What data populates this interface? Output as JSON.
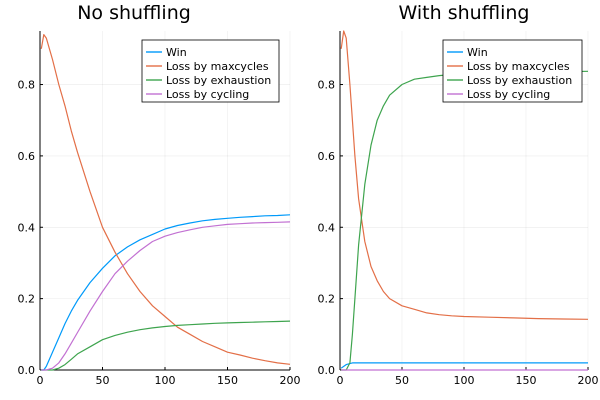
{
  "chart_data": [
    {
      "type": "line",
      "title": "No shuffling",
      "xlabel": "",
      "ylabel": "",
      "xlim": [
        0,
        200
      ],
      "ylim": [
        0,
        0.95
      ],
      "xticks": [
        0,
        50,
        100,
        150,
        200
      ],
      "yticks": [
        0.0,
        0.2,
        0.4,
        0.6,
        0.8
      ],
      "xtick_labels": [
        "0",
        "50",
        "100",
        "150",
        "200"
      ],
      "ytick_labels": [
        "0.0",
        "0.2",
        "0.4",
        "0.6",
        "0.8"
      ],
      "grid": true,
      "legend_position": "top-right",
      "x": [
        1,
        3,
        5,
        10,
        15,
        20,
        25,
        30,
        40,
        50,
        60,
        70,
        80,
        90,
        100,
        110,
        120,
        130,
        140,
        150,
        160,
        170,
        180,
        190,
        200
      ],
      "series": [
        {
          "name": "Win",
          "color": "#009AFA",
          "values": [
            0.0,
            0.0,
            0.01,
            0.05,
            0.09,
            0.13,
            0.165,
            0.195,
            0.245,
            0.285,
            0.32,
            0.345,
            0.365,
            0.38,
            0.395,
            0.405,
            0.412,
            0.418,
            0.422,
            0.425,
            0.428,
            0.43,
            0.432,
            0.433,
            0.435
          ]
        },
        {
          "name": "Loss by maxcycles",
          "color": "#E36F47",
          "values": [
            0.9,
            0.94,
            0.93,
            0.87,
            0.8,
            0.74,
            0.67,
            0.61,
            0.5,
            0.4,
            0.33,
            0.27,
            0.22,
            0.18,
            0.15,
            0.12,
            0.1,
            0.08,
            0.065,
            0.05,
            0.042,
            0.033,
            0.026,
            0.02,
            0.016
          ]
        },
        {
          "name": "Loss by exhaustion",
          "color": "#3EA44E",
          "values": [
            0.0,
            0.0,
            0.0,
            0.0,
            0.005,
            0.015,
            0.03,
            0.045,
            0.065,
            0.085,
            0.097,
            0.106,
            0.113,
            0.118,
            0.122,
            0.125,
            0.127,
            0.129,
            0.131,
            0.132,
            0.133,
            0.134,
            0.135,
            0.136,
            0.137
          ]
        },
        {
          "name": "Loss by cycling",
          "color": "#C271D2",
          "values": [
            0.0,
            0.0,
            0.0,
            0.005,
            0.02,
            0.045,
            0.075,
            0.105,
            0.165,
            0.22,
            0.27,
            0.305,
            0.335,
            0.36,
            0.375,
            0.385,
            0.393,
            0.4,
            0.404,
            0.408,
            0.41,
            0.412,
            0.413,
            0.414,
            0.415
          ]
        }
      ]
    },
    {
      "type": "line",
      "title": "With shuffling",
      "xlabel": "",
      "ylabel": "",
      "xlim": [
        0,
        200
      ],
      "ylim": [
        0,
        0.95
      ],
      "xticks": [
        0,
        50,
        100,
        150,
        200
      ],
      "yticks": [
        0.0,
        0.2,
        0.4,
        0.6,
        0.8
      ],
      "xtick_labels": [
        "0",
        "50",
        "100",
        "150",
        "200"
      ],
      "ytick_labels": [
        "0.0",
        "0.2",
        "0.4",
        "0.6",
        "0.8"
      ],
      "grid": true,
      "legend_position": "top-right",
      "x": [
        1,
        3,
        5,
        8,
        10,
        12,
        15,
        20,
        25,
        30,
        35,
        40,
        50,
        60,
        70,
        80,
        90,
        100,
        120,
        140,
        160,
        180,
        200
      ],
      "series": [
        {
          "name": "Win",
          "color": "#009AFA",
          "values": [
            0.005,
            0.01,
            0.015,
            0.018,
            0.02,
            0.02,
            0.02,
            0.02,
            0.02,
            0.02,
            0.02,
            0.02,
            0.02,
            0.02,
            0.02,
            0.02,
            0.02,
            0.02,
            0.02,
            0.02,
            0.02,
            0.02,
            0.02
          ]
        },
        {
          "name": "Loss by maxcycles",
          "color": "#E36F47",
          "values": [
            0.9,
            0.95,
            0.93,
            0.8,
            0.7,
            0.6,
            0.48,
            0.36,
            0.29,
            0.25,
            0.22,
            0.2,
            0.18,
            0.17,
            0.16,
            0.155,
            0.152,
            0.15,
            0.148,
            0.146,
            0.144,
            0.143,
            0.142
          ]
        },
        {
          "name": "Loss by exhaustion",
          "color": "#3EA44E",
          "values": [
            0.0,
            0.0,
            0.0,
            0.02,
            0.1,
            0.2,
            0.35,
            0.52,
            0.63,
            0.7,
            0.74,
            0.77,
            0.8,
            0.815,
            0.82,
            0.825,
            0.828,
            0.83,
            0.832,
            0.834,
            0.835,
            0.836,
            0.837
          ]
        },
        {
          "name": "Loss by cycling",
          "color": "#C271D2",
          "values": [
            0.0,
            0.0,
            0.0,
            0.0,
            0.0,
            0.0,
            0.0,
            0.0,
            0.0,
            0.0,
            0.0,
            0.0,
            0.0,
            0.0,
            0.0,
            0.0,
            0.0,
            0.0,
            0.0,
            0.0,
            0.0,
            0.0,
            0.0
          ]
        }
      ]
    }
  ]
}
